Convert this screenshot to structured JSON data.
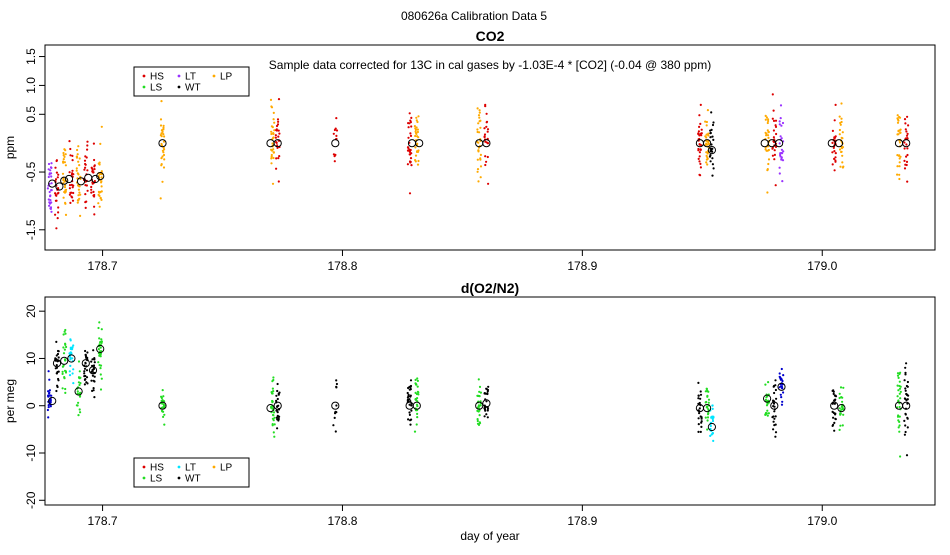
{
  "figure_title": "080626a   Calibration Data 5",
  "colors": {
    "HS": "#dd0000",
    "LS": "#22dd22",
    "LT": "#00e5ff",
    "WT": "#000000",
    "LP": "#ffaa00",
    "LT_co2": "#9933ff",
    "WT_o2": "#0000cc"
  },
  "chart_data": [
    {
      "type": "scatter",
      "title": "CO2",
      "subtitle": "Sample data corrected for 13C in cal gases by -1.03E-4 * [CO2] (-0.04 @ 380 ppm)",
      "xlabel": "",
      "ylabel": "ppm",
      "xlim": [
        178.676,
        179.047
      ],
      "ylim": [
        -1.85,
        1.7
      ],
      "xticks": [
        "178.7",
        "178.8",
        "178.9",
        "179.0"
      ],
      "xtick_values": [
        178.7,
        178.8,
        178.9,
        179.0
      ],
      "yticks": [
        "-1.5",
        "-0.5",
        "0.5",
        "1.0",
        "1.5"
      ],
      "ytick_values": [
        -1.5,
        -0.5,
        0.5,
        1.0,
        1.5
      ],
      "legend": {
        "position": "top-left",
        "entries": [
          "HS",
          "LS",
          "LT",
          "WT",
          "LP"
        ]
      },
      "grid": false,
      "clusters": [
        {
          "x": 178.678,
          "center": -0.7,
          "spread": 0.55,
          "color": "LT_co2",
          "n": 30
        },
        {
          "x": 178.681,
          "center": -0.75,
          "spread": 0.6,
          "color": "HS",
          "n": 25
        },
        {
          "x": 178.684,
          "center": -0.62,
          "spread": 0.55,
          "color": "LP",
          "n": 30
        },
        {
          "x": 178.687,
          "center": -0.6,
          "spread": 0.6,
          "color": "HS",
          "n": 25
        },
        {
          "x": 178.69,
          "center": -0.65,
          "spread": 0.55,
          "color": "LP",
          "n": 30
        },
        {
          "x": 178.693,
          "center": -0.55,
          "spread": 0.6,
          "color": "HS",
          "n": 25
        },
        {
          "x": 178.696,
          "center": -0.6,
          "spread": 0.55,
          "color": "HS",
          "n": 25
        },
        {
          "x": 178.699,
          "center": -0.58,
          "spread": 0.6,
          "color": "LP",
          "n": 30
        },
        {
          "x": 178.725,
          "center": 0.0,
          "spread": 0.55,
          "color": "LP",
          "n": 30
        },
        {
          "x": 178.771,
          "center": 0.0,
          "spread": 0.55,
          "color": "LP",
          "n": 30
        },
        {
          "x": 178.773,
          "center": 0.0,
          "spread": 0.55,
          "color": "HS",
          "n": 25
        },
        {
          "x": 178.797,
          "center": 0.0,
          "spread": 0.5,
          "color": "HS",
          "n": 12
        },
        {
          "x": 178.828,
          "center": 0.0,
          "spread": 0.6,
          "color": "HS",
          "n": 30
        },
        {
          "x": 178.831,
          "center": 0.0,
          "spread": 0.6,
          "color": "LP",
          "n": 30
        },
        {
          "x": 178.857,
          "center": 0.0,
          "spread": 0.55,
          "color": "LP",
          "n": 30
        },
        {
          "x": 178.86,
          "center": 0.0,
          "spread": 0.55,
          "color": "HS",
          "n": 25
        },
        {
          "x": 178.949,
          "center": 0.0,
          "spread": 0.6,
          "color": "HS",
          "n": 30
        },
        {
          "x": 178.952,
          "center": 0.0,
          "spread": 0.6,
          "color": "LP",
          "n": 30
        },
        {
          "x": 178.954,
          "center": -0.1,
          "spread": 0.6,
          "color": "WT",
          "n": 25
        },
        {
          "x": 178.977,
          "center": 0.0,
          "spread": 0.6,
          "color": "LP",
          "n": 30
        },
        {
          "x": 178.98,
          "center": 0.0,
          "spread": 0.55,
          "color": "HS",
          "n": 25
        },
        {
          "x": 178.983,
          "center": 0.0,
          "spread": 0.55,
          "color": "LT_co2",
          "n": 25
        },
        {
          "x": 179.005,
          "center": 0.0,
          "spread": 0.55,
          "color": "HS",
          "n": 25
        },
        {
          "x": 179.008,
          "center": 0.0,
          "spread": 0.55,
          "color": "LP",
          "n": 25
        },
        {
          "x": 179.032,
          "center": 0.0,
          "spread": 0.6,
          "color": "LP",
          "n": 30
        },
        {
          "x": 179.035,
          "center": 0.0,
          "spread": 0.55,
          "color": "HS",
          "n": 25
        }
      ],
      "means": [
        {
          "x": 178.679,
          "y": -0.7
        },
        {
          "x": 178.682,
          "y": -0.75
        },
        {
          "x": 178.684,
          "y": -0.65
        },
        {
          "x": 178.686,
          "y": -0.62
        },
        {
          "x": 178.691,
          "y": -0.66
        },
        {
          "x": 178.694,
          "y": -0.6
        },
        {
          "x": 178.697,
          "y": -0.62
        },
        {
          "x": 178.699,
          "y": -0.57
        },
        {
          "x": 178.725,
          "y": 0.0
        },
        {
          "x": 178.77,
          "y": 0.0
        },
        {
          "x": 178.773,
          "y": 0.0
        },
        {
          "x": 178.797,
          "y": 0.0
        },
        {
          "x": 178.829,
          "y": 0.0
        },
        {
          "x": 178.832,
          "y": 0.0
        },
        {
          "x": 178.857,
          "y": 0.0
        },
        {
          "x": 178.86,
          "y": 0.0
        },
        {
          "x": 178.949,
          "y": 0.0
        },
        {
          "x": 178.952,
          "y": 0.0
        },
        {
          "x": 178.954,
          "y": -0.12
        },
        {
          "x": 178.976,
          "y": 0.0
        },
        {
          "x": 178.979,
          "y": 0.0
        },
        {
          "x": 178.982,
          "y": 0.0
        },
        {
          "x": 179.004,
          "y": 0.0
        },
        {
          "x": 179.007,
          "y": 0.0
        },
        {
          "x": 179.032,
          "y": 0.0
        },
        {
          "x": 179.035,
          "y": 0.0
        }
      ]
    },
    {
      "type": "scatter",
      "title": "d(O2/N2)",
      "xlabel": "day of year",
      "ylabel": "per meg",
      "xlim": [
        178.676,
        179.047
      ],
      "ylim": [
        -21,
        23
      ],
      "xticks": [
        "178.7",
        "178.8",
        "178.9",
        "179.0"
      ],
      "xtick_values": [
        178.7,
        178.8,
        178.9,
        179.0
      ],
      "yticks": [
        "-20",
        "-10",
        "0",
        "10",
        "20"
      ],
      "ytick_values": [
        -20,
        -10,
        0,
        10,
        20
      ],
      "legend": {
        "position": "bottom-left",
        "entries": [
          "HS",
          "LS",
          "LT",
          "WT",
          "LP"
        ]
      },
      "grid": false,
      "clusters": [
        {
          "x": 178.678,
          "center": 1.0,
          "spread": 4,
          "color": "WT_o2",
          "n": 25
        },
        {
          "x": 178.681,
          "center": 9.0,
          "spread": 6,
          "color": "WT",
          "n": 25
        },
        {
          "x": 178.684,
          "center": 9.0,
          "spread": 6,
          "color": "LS",
          "n": 25
        },
        {
          "x": 178.687,
          "center": 10.0,
          "spread": 5,
          "color": "LT",
          "n": 25
        },
        {
          "x": 178.69,
          "center": 3.0,
          "spread": 5,
          "color": "LS",
          "n": 25
        },
        {
          "x": 178.693,
          "center": 8.5,
          "spread": 6,
          "color": "WT",
          "n": 25
        },
        {
          "x": 178.696,
          "center": 7.0,
          "spread": 6,
          "color": "WT",
          "n": 25
        },
        {
          "x": 178.699,
          "center": 12.0,
          "spread": 6,
          "color": "LS",
          "n": 30
        },
        {
          "x": 178.725,
          "center": 0.0,
          "spread": 4,
          "color": "LS",
          "n": 25
        },
        {
          "x": 178.771,
          "center": 0.0,
          "spread": 5,
          "color": "LS",
          "n": 30
        },
        {
          "x": 178.773,
          "center": 0.0,
          "spread": 5,
          "color": "WT",
          "n": 25
        },
        {
          "x": 178.797,
          "center": 0.0,
          "spread": 8,
          "color": "WT",
          "n": 12
        },
        {
          "x": 178.828,
          "center": 0.0,
          "spread": 6,
          "color": "WT",
          "n": 30
        },
        {
          "x": 178.831,
          "center": 0.0,
          "spread": 6,
          "color": "LS",
          "n": 30
        },
        {
          "x": 178.857,
          "center": 0.0,
          "spread": 5,
          "color": "LS",
          "n": 30
        },
        {
          "x": 178.86,
          "center": 0.5,
          "spread": 5,
          "color": "WT",
          "n": 25
        },
        {
          "x": 178.949,
          "center": -0.5,
          "spread": 5,
          "color": "WT",
          "n": 25
        },
        {
          "x": 178.952,
          "center": -0.5,
          "spread": 5,
          "color": "LS",
          "n": 25
        },
        {
          "x": 178.954,
          "center": -4.5,
          "spread": 4,
          "color": "LT",
          "n": 25
        },
        {
          "x": 178.977,
          "center": 1.0,
          "spread": 5,
          "color": "LS",
          "n": 25
        },
        {
          "x": 178.98,
          "center": 0.0,
          "spread": 5,
          "color": "WT",
          "n": 25
        },
        {
          "x": 178.983,
          "center": 4.0,
          "spread": 4,
          "color": "WT_o2",
          "n": 25
        },
        {
          "x": 179.005,
          "center": 0.0,
          "spread": 5,
          "color": "WT",
          "n": 25
        },
        {
          "x": 179.008,
          "center": -0.5,
          "spread": 4,
          "color": "LS",
          "n": 25
        },
        {
          "x": 179.032,
          "center": 0.0,
          "spread": 9,
          "color": "LS",
          "n": 30
        },
        {
          "x": 179.035,
          "center": 0.0,
          "spread": 8,
          "color": "WT",
          "n": 30
        }
      ],
      "means": [
        {
          "x": 178.679,
          "y": 1.0
        },
        {
          "x": 178.681,
          "y": 9.0
        },
        {
          "x": 178.684,
          "y": 9.5
        },
        {
          "x": 178.687,
          "y": 10.0
        },
        {
          "x": 178.69,
          "y": 3.0
        },
        {
          "x": 178.693,
          "y": 9.0
        },
        {
          "x": 178.696,
          "y": 7.5
        },
        {
          "x": 178.699,
          "y": 12.0
        },
        {
          "x": 178.725,
          "y": 0.0
        },
        {
          "x": 178.77,
          "y": -0.5
        },
        {
          "x": 178.773,
          "y": 0.0
        },
        {
          "x": 178.797,
          "y": 0.0
        },
        {
          "x": 178.828,
          "y": 0.0
        },
        {
          "x": 178.831,
          "y": 0.0
        },
        {
          "x": 178.857,
          "y": 0.0
        },
        {
          "x": 178.86,
          "y": 0.5
        },
        {
          "x": 178.949,
          "y": -0.5
        },
        {
          "x": 178.952,
          "y": -0.5
        },
        {
          "x": 178.954,
          "y": -4.5
        },
        {
          "x": 178.977,
          "y": 1.5
        },
        {
          "x": 178.98,
          "y": 0.0
        },
        {
          "x": 178.983,
          "y": 4.0
        },
        {
          "x": 179.005,
          "y": 0.0
        },
        {
          "x": 179.008,
          "y": -0.5
        },
        {
          "x": 179.032,
          "y": 0.0
        },
        {
          "x": 179.035,
          "y": 0.0
        }
      ]
    }
  ]
}
